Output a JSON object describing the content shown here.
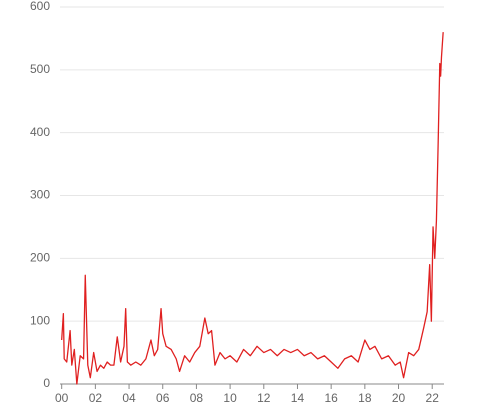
{
  "chart_data": {
    "type": "line",
    "x": [
      0,
      0.1,
      0.15,
      0.3,
      0.5,
      0.6,
      0.75,
      0.9,
      1.1,
      1.3,
      1.4,
      1.55,
      1.7,
      1.9,
      2.1,
      2.3,
      2.5,
      2.7,
      2.9,
      3.1,
      3.3,
      3.5,
      3.7,
      3.8,
      3.9,
      4.1,
      4.4,
      4.7,
      5.0,
      5.3,
      5.5,
      5.7,
      5.9,
      6.0,
      6.2,
      6.5,
      6.8,
      7.0,
      7.3,
      7.6,
      7.9,
      8.2,
      8.5,
      8.7,
      8.9,
      9.1,
      9.4,
      9.7,
      10.0,
      10.4,
      10.8,
      11.2,
      11.6,
      12.0,
      12.4,
      12.8,
      13.2,
      13.6,
      14.0,
      14.4,
      14.8,
      15.2,
      15.6,
      16.0,
      16.4,
      16.8,
      17.2,
      17.6,
      18.0,
      18.3,
      18.6,
      19.0,
      19.4,
      19.8,
      20.1,
      20.3,
      20.6,
      20.9,
      21.2,
      21.5,
      21.7,
      21.85,
      21.95,
      22.05,
      22.15,
      22.25,
      22.35,
      22.45,
      22.5,
      22.55,
      22.65
    ],
    "series": [
      {
        "color": "#e02020",
        "values": [
          70,
          112,
          40,
          35,
          85,
          30,
          55,
          0,
          45,
          40,
          173,
          30,
          10,
          50,
          20,
          30,
          25,
          35,
          30,
          30,
          75,
          35,
          60,
          120,
          35,
          30,
          35,
          30,
          40,
          70,
          45,
          55,
          120,
          80,
          60,
          55,
          40,
          20,
          45,
          35,
          50,
          60,
          105,
          80,
          85,
          30,
          50,
          40,
          45,
          35,
          55,
          45,
          60,
          50,
          55,
          45,
          55,
          50,
          55,
          45,
          50,
          40,
          45,
          35,
          25,
          40,
          45,
          35,
          70,
          55,
          60,
          40,
          45,
          30,
          35,
          10,
          50,
          45,
          55,
          90,
          115,
          190,
          100,
          250,
          200,
          260,
          380,
          510,
          490,
          520,
          560
        ]
      }
    ],
    "xlim": [
      -0.1,
      22.7
    ],
    "xticks": [
      {
        "value": 0,
        "label": "00"
      },
      {
        "value": 2,
        "label": "02"
      },
      {
        "value": 4,
        "label": "04"
      },
      {
        "value": 6,
        "label": "06"
      },
      {
        "value": 8,
        "label": "08"
      },
      10,
      12,
      14,
      16,
      18,
      20,
      22
    ],
    "ylim": [
      0,
      600
    ],
    "yticks": [
      0,
      100,
      200,
      300,
      400,
      500,
      600
    ],
    "grid": true
  }
}
